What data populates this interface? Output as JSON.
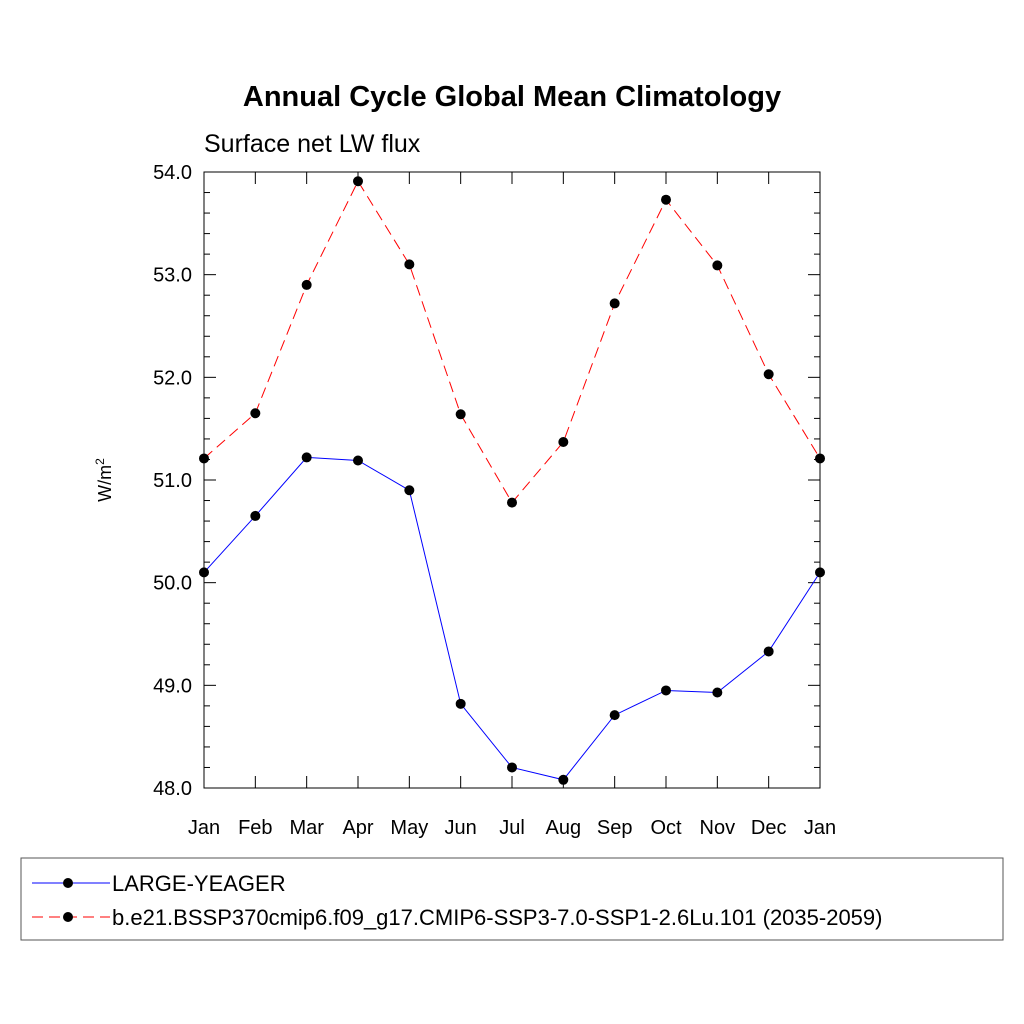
{
  "chart_data": {
    "type": "line",
    "title": "Annual Cycle Global Mean Climatology",
    "subtitle": "Surface net LW flux",
    "ylabel": "W/m",
    "ylabel_superscript": "2",
    "xlabel": "",
    "categories": [
      "Jan",
      "Feb",
      "Mar",
      "Apr",
      "May",
      "Jun",
      "Jul",
      "Aug",
      "Sep",
      "Oct",
      "Nov",
      "Dec",
      "Jan"
    ],
    "ylim": [
      48.0,
      54.0
    ],
    "yticks": [
      "48.0",
      "49.0",
      "50.0",
      "51.0",
      "52.0",
      "53.0",
      "54.0"
    ],
    "ytick_values": [
      48,
      49,
      50,
      51,
      52,
      53,
      54
    ],
    "series": [
      {
        "name": "LARGE-YEAGER",
        "color": "#0000ff",
        "dash": "solid",
        "values": [
          50.1,
          50.65,
          51.22,
          51.19,
          50.9,
          48.82,
          48.2,
          48.08,
          48.71,
          48.95,
          48.93,
          49.33,
          50.1
        ]
      },
      {
        "name": "b.e21.BSSP370cmip6.f09_g17.CMIP6-SSP3-7.0-SSP1-2.6Lu.101 (2035-2059)",
        "color": "#ff0000",
        "dash": "dashed",
        "values": [
          51.21,
          51.65,
          52.9,
          53.91,
          53.1,
          51.64,
          50.78,
          51.37,
          52.72,
          53.73,
          53.09,
          52.03,
          51.21
        ]
      }
    ],
    "legend_position": "bottom"
  }
}
